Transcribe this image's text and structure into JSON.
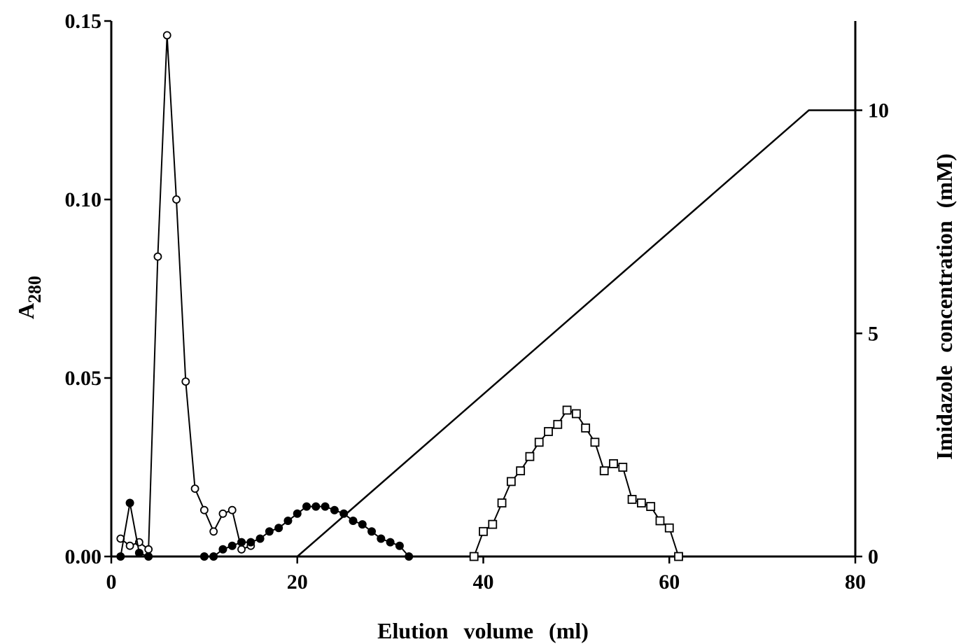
{
  "chart_data": {
    "type": "line",
    "title": "",
    "xlabel": "Elution volume (ml)",
    "ylabel_main": "A",
    "ylabel_sub": "280",
    "ylabel_right": "Imidazole concentration (mM)",
    "xlim": [
      0,
      80
    ],
    "ylim": [
      0,
      0.15
    ],
    "ylim_right": [
      0,
      12
    ],
    "x_ticks": [
      {
        "value": 0,
        "label": "0"
      },
      {
        "value": 20,
        "label": "20"
      },
      {
        "value": 40,
        "label": "40"
      },
      {
        "value": 60,
        "label": "60"
      },
      {
        "value": 80,
        "label": "80"
      }
    ],
    "y_ticks": [
      {
        "value": 0,
        "label": "0.00"
      },
      {
        "value": 0.05,
        "label": "0.05"
      },
      {
        "value": 0.1,
        "label": "0.10"
      },
      {
        "value": 0.15,
        "label": "0.15"
      }
    ],
    "y_right_ticks": [
      {
        "value": 0,
        "label": "0"
      },
      {
        "value": 5,
        "label": "5"
      },
      {
        "value": 10,
        "label": "10"
      }
    ],
    "grid": false,
    "series": [
      {
        "marker": "open-circle",
        "axis": "left",
        "segments": [
          [
            [
              1,
              0.005
            ],
            [
              2,
              0.003
            ],
            [
              3,
              0.004
            ],
            [
              4,
              0.002
            ],
            [
              5,
              0.084
            ],
            [
              6,
              0.146
            ],
            [
              7,
              0.1
            ],
            [
              8,
              0.049
            ],
            [
              9,
              0.019
            ],
            [
              10,
              0.013
            ],
            [
              11,
              0.007
            ],
            [
              12,
              0.012
            ],
            [
              13,
              0.013
            ],
            [
              14,
              0.002
            ],
            [
              15,
              0.003
            ]
          ]
        ]
      },
      {
        "marker": "filled-circle",
        "axis": "left",
        "segments": [
          [
            [
              1,
              0.0
            ],
            [
              2,
              0.015
            ],
            [
              3,
              0.001
            ],
            [
              4,
              0.0
            ]
          ],
          [
            [
              10,
              0.0
            ],
            [
              11,
              0.0
            ],
            [
              12,
              0.002
            ],
            [
              13,
              0.003
            ],
            [
              14,
              0.004
            ],
            [
              15,
              0.004
            ],
            [
              16,
              0.005
            ],
            [
              17,
              0.007
            ],
            [
              18,
              0.008
            ],
            [
              19,
              0.01
            ],
            [
              20,
              0.012
            ],
            [
              21,
              0.014
            ],
            [
              22,
              0.014
            ],
            [
              23,
              0.014
            ],
            [
              24,
              0.013
            ],
            [
              25,
              0.012
            ],
            [
              26,
              0.01
            ],
            [
              27,
              0.009
            ],
            [
              28,
              0.007
            ],
            [
              29,
              0.005
            ],
            [
              30,
              0.004
            ],
            [
              31,
              0.003
            ],
            [
              32,
              0.0
            ]
          ]
        ]
      },
      {
        "marker": "open-square",
        "axis": "left",
        "segments": [
          [
            [
              39,
              0.0
            ],
            [
              40,
              0.007
            ],
            [
              41,
              0.009
            ],
            [
              42,
              0.015
            ],
            [
              43,
              0.021
            ],
            [
              44,
              0.024
            ],
            [
              45,
              0.028
            ],
            [
              46,
              0.032
            ],
            [
              47,
              0.035
            ],
            [
              48,
              0.037
            ],
            [
              49,
              0.041
            ],
            [
              50,
              0.04
            ],
            [
              51,
              0.036
            ],
            [
              52,
              0.032
            ],
            [
              53,
              0.024
            ],
            [
              54,
              0.026
            ],
            [
              55,
              0.025
            ],
            [
              56,
              0.016
            ],
            [
              57,
              0.015
            ],
            [
              58,
              0.014
            ],
            [
              59,
              0.01
            ],
            [
              60,
              0.008
            ],
            [
              61,
              0.0
            ]
          ]
        ]
      },
      {
        "marker": "none",
        "axis": "right",
        "segments": [
          [
            [
              0,
              0
            ],
            [
              20,
              0
            ],
            [
              75,
              10
            ],
            [
              80,
              10
            ]
          ]
        ]
      }
    ]
  }
}
